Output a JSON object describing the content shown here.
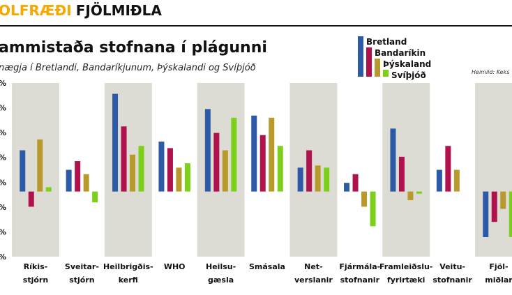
{
  "banner": {
    "part1": "OLFRÆÐI",
    "part2": "FJÖLMIÐLA",
    "part1_color": "#f5a800",
    "part2_color": "#111111"
  },
  "chart_data": {
    "type": "bar",
    "title": "ammistaða stofnana í plágunni",
    "subtitle": "nægja í Bretlandi, Bandaríkjunum, Þýskalandi og Svíþjóð",
    "source": "Heimild: Keks",
    "categories": [
      [
        "Ríkis-",
        "stjórn"
      ],
      [
        "Sveitar-",
        "stjórn"
      ],
      [
        "Heilbrigðis-",
        "kerfi"
      ],
      [
        "WHO"
      ],
      [
        "Heilsu-",
        "gæsla"
      ],
      [
        "Smásala"
      ],
      [
        "Net-",
        "verslanir"
      ],
      [
        "Fjármála-",
        "stofnanir"
      ],
      [
        "Framleiðslu-",
        "fyrirtæki"
      ],
      [
        "Veitu-",
        "stofnanir"
      ],
      [
        "Fjöl-",
        "miðlar"
      ]
    ],
    "y_ticks": [
      "%",
      "%",
      "%",
      "%",
      "%",
      "%",
      "%",
      "%"
    ],
    "ylim": [
      -30,
      50
    ],
    "series": [
      {
        "name": "Bretland",
        "color": "#2d5aa6",
        "values": [
          19,
          10,
          45,
          23,
          38,
          35,
          11,
          4,
          29,
          10,
          -21
        ]
      },
      {
        "name": "Bandaríkin",
        "color": "#b0124e",
        "values": [
          -7,
          14,
          30,
          20,
          27,
          26,
          19,
          8,
          16,
          21,
          -14
        ]
      },
      {
        "name": "Þýskaland",
        "color": "#b89a2c",
        "values": [
          24,
          8,
          17,
          11,
          19,
          34,
          12,
          -7,
          -4,
          10,
          -8
        ]
      },
      {
        "name": "Svíþjóð",
        "color": "#7ccf1a",
        "values": [
          2,
          -5,
          21,
          13,
          34,
          21,
          11,
          -16,
          -1,
          null,
          -21
        ]
      }
    ],
    "shaded_columns": [
      0,
      2,
      4,
      6,
      8,
      10
    ],
    "shade_color": "#dcdcd4",
    "grid": false,
    "legend_position": "top-right"
  }
}
